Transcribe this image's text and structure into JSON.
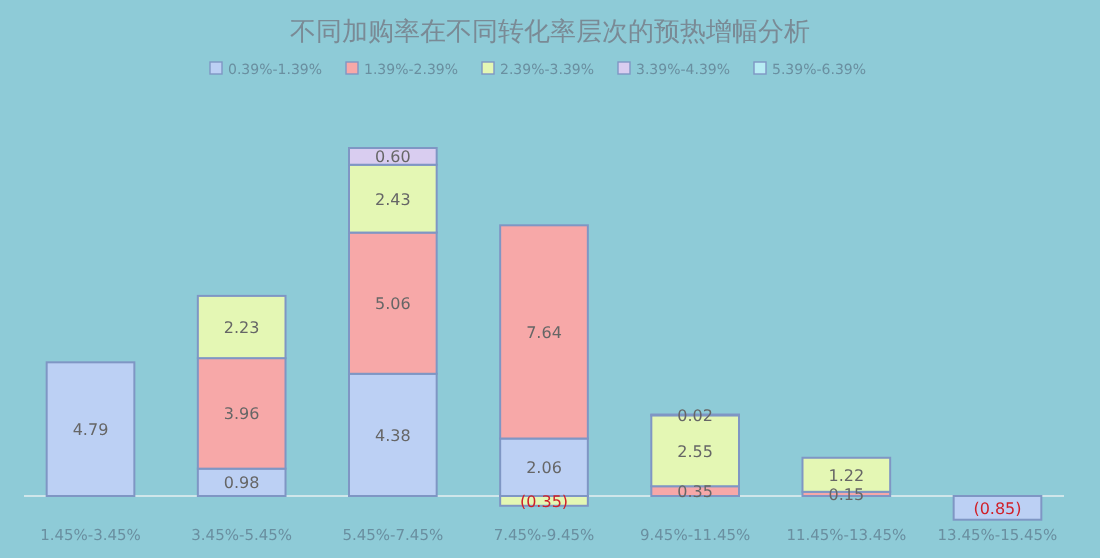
{
  "chart_data": {
    "type": "bar",
    "stacked": true,
    "title": "不同加购率在不同转化率层次的预热增幅分析",
    "categories": [
      "1.45%-3.45%",
      "3.45%-5.45%",
      "5.45%-7.45%",
      "7.45%-9.45%",
      "9.45%-11.45%",
      "11.45%-13.45%",
      "13.45%-15.45%"
    ],
    "legend": "top",
    "series": [
      {
        "name": "0.39%-1.39%",
        "color": "#bcd0f4",
        "values": [
          4.79,
          0.98,
          4.38,
          2.06,
          null,
          null,
          -0.85
        ],
        "value_labels": [
          "4.79",
          "0.98",
          "4.38",
          "2.06",
          null,
          null,
          "(0.85)"
        ]
      },
      {
        "name": "1.39%-2.39%",
        "color": "#f7a8a8",
        "values": [
          null,
          3.96,
          5.06,
          7.64,
          0.35,
          0.15,
          null
        ],
        "value_labels": [
          null,
          "3.96",
          "5.06",
          "7.64",
          "0.35",
          "0.15",
          null
        ]
      },
      {
        "name": "2.39%-3.39%",
        "color": "#e4f7b4",
        "values": [
          null,
          2.23,
          2.43,
          -0.35,
          2.55,
          1.22,
          null
        ],
        "value_labels": [
          null,
          "2.23",
          "2.43",
          "(0.35)",
          "2.55",
          "1.22",
          null
        ]
      },
      {
        "name": "3.39%-4.39%",
        "color": "#d9cdf0",
        "values": [
          null,
          null,
          0.6,
          null,
          0.02,
          null,
          null
        ],
        "value_labels": [
          null,
          null,
          "0.60",
          null,
          "0.02",
          null,
          null
        ]
      },
      {
        "name": "5.39%-6.39%",
        "color": "#b8ecf4",
        "values": [
          null,
          null,
          null,
          null,
          null,
          null,
          null
        ]
      }
    ]
  }
}
